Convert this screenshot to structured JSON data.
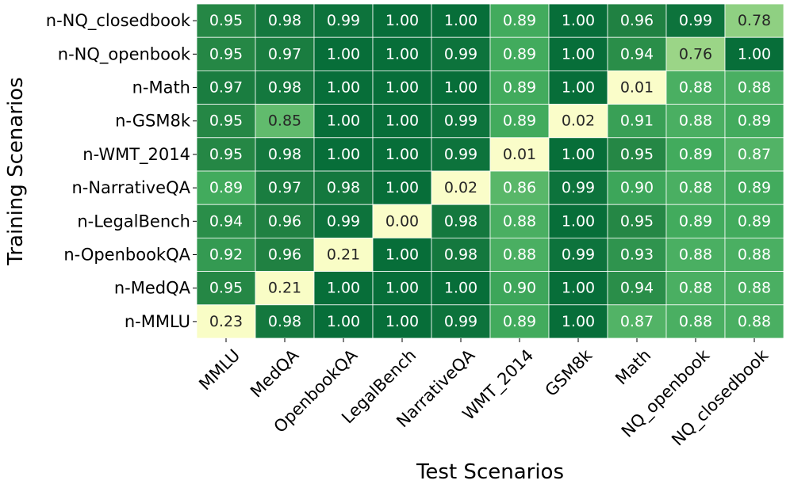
{
  "chart_data": {
    "type": "heatmap",
    "xlabel": "Test Scenarios",
    "ylabel": "Training Scenarios",
    "x_categories": [
      "MMLU",
      "MedQA",
      "OpenbookQA",
      "LegalBench",
      "NarrativeQA",
      "WMT_2014",
      "GSM8k",
      "Math",
      "NQ_openbook",
      "NQ_closedbook"
    ],
    "y_categories": [
      "n-NQ_closedbook",
      "n-NQ_openbook",
      "n-Math",
      "n-GSM8k",
      "n-WMT_2014",
      "n-NarrativeQA",
      "n-LegalBench",
      "n-OpenbookQA",
      "n-MedQA",
      "n-MMLU"
    ],
    "values": [
      [
        0.95,
        0.98,
        0.99,
        1.0,
        1.0,
        0.89,
        1.0,
        0.96,
        0.99,
        0.78
      ],
      [
        0.95,
        0.97,
        1.0,
        1.0,
        0.99,
        0.89,
        1.0,
        0.94,
        0.76,
        1.0
      ],
      [
        0.97,
        0.98,
        1.0,
        1.0,
        1.0,
        0.89,
        1.0,
        0.01,
        0.88,
        0.88
      ],
      [
        0.95,
        0.85,
        1.0,
        1.0,
        0.99,
        0.89,
        0.02,
        0.91,
        0.88,
        0.89
      ],
      [
        0.95,
        0.98,
        1.0,
        1.0,
        0.99,
        0.01,
        1.0,
        0.95,
        0.89,
        0.87
      ],
      [
        0.89,
        0.97,
        0.98,
        1.0,
        0.02,
        0.86,
        0.99,
        0.9,
        0.88,
        0.89
      ],
      [
        0.94,
        0.96,
        0.99,
        0.0,
        0.98,
        0.88,
        1.0,
        0.95,
        0.89,
        0.89
      ],
      [
        0.92,
        0.96,
        0.21,
        1.0,
        0.98,
        0.88,
        0.99,
        0.93,
        0.88,
        0.88
      ],
      [
        0.95,
        0.21,
        1.0,
        1.0,
        1.0,
        0.9,
        1.0,
        0.94,
        0.88,
        0.88
      ],
      [
        0.23,
        0.98,
        1.0,
        1.0,
        0.99,
        0.89,
        1.0,
        0.87,
        0.88,
        0.88
      ]
    ],
    "colormap": "YlGn",
    "value_format": "0.00",
    "grid": "white cell borders"
  }
}
